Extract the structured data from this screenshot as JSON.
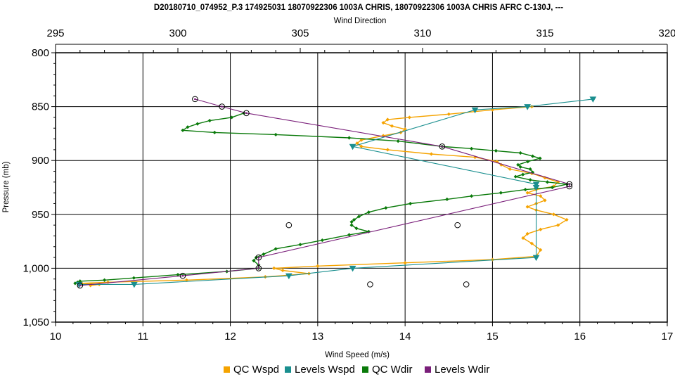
{
  "chart_data": {
    "type": "line",
    "title": "D20180710_074952_P.3 174925031 18070922306 1003A CHRIS, 18070922306 1003A CHRIS AFRC C-130J, ---",
    "xlabel": "Wind Speed (m/s)",
    "x2label": "Wind Direction",
    "ylabel": "Pressure (mb)",
    "xlim": [
      10,
      17
    ],
    "x2lim": [
      295,
      320
    ],
    "ylim": [
      800,
      1050
    ],
    "y_inverted": true,
    "xticks": [
      "10",
      "11",
      "12",
      "13",
      "14",
      "15",
      "16",
      "17"
    ],
    "x2ticks": [
      "295",
      "300",
      "305",
      "310",
      "315",
      "320"
    ],
    "yticks": [
      "800",
      "850",
      "900",
      "950",
      "1,000",
      "1,050"
    ],
    "grid": true,
    "legend_position": "bottom",
    "legend": [
      "QC Wspd",
      "Levels Wspd",
      "QC Wdir",
      "Levels Wdir"
    ],
    "series": [
      {
        "name": "QC Wspd",
        "axis": "x",
        "color": "#f5a300",
        "marker": "diamond",
        "points": [
          [
            15.45,
            850
          ],
          [
            15.0,
            853
          ],
          [
            14.5,
            857
          ],
          [
            14.05,
            860
          ],
          [
            13.8,
            862
          ],
          [
            13.75,
            865
          ],
          [
            13.85,
            868
          ],
          [
            14.0,
            871
          ],
          [
            13.95,
            874
          ],
          [
            13.75,
            877
          ],
          [
            13.5,
            881
          ],
          [
            13.45,
            884
          ],
          [
            13.5,
            887
          ],
          [
            13.8,
            890
          ],
          [
            14.3,
            894
          ],
          [
            14.8,
            897
          ],
          [
            15.05,
            901
          ],
          [
            15.1,
            904
          ],
          [
            15.2,
            908
          ],
          [
            15.45,
            912
          ],
          [
            15.6,
            916
          ],
          [
            15.75,
            920
          ],
          [
            15.7,
            924
          ],
          [
            15.5,
            927
          ],
          [
            15.4,
            930
          ],
          [
            15.55,
            933
          ],
          [
            15.6,
            937
          ],
          [
            15.5,
            940
          ],
          [
            15.4,
            943
          ],
          [
            15.5,
            946
          ],
          [
            15.7,
            950
          ],
          [
            15.85,
            955
          ],
          [
            15.75,
            960
          ],
          [
            15.55,
            964
          ],
          [
            15.4,
            968
          ],
          [
            15.35,
            972
          ],
          [
            15.45,
            977
          ],
          [
            15.55,
            983
          ],
          [
            15.5,
            989
          ],
          [
            15.0,
            992
          ],
          [
            14.0,
            995
          ],
          [
            13.0,
            998
          ],
          [
            12.5,
            1000
          ],
          [
            12.6,
            1002
          ],
          [
            12.9,
            1005
          ],
          [
            12.4,
            1008
          ],
          [
            11.5,
            1011
          ],
          [
            10.6,
            1013
          ],
          [
            10.3,
            1014
          ],
          [
            10.5,
            1015
          ],
          [
            10.4,
            1016
          ]
        ]
      },
      {
        "name": "Levels Wspd",
        "axis": "x",
        "color": "#1a8f8f",
        "marker": "triangle",
        "points": [
          [
            16.15,
            843
          ],
          [
            15.4,
            850
          ],
          [
            14.8,
            853
          ],
          [
            13.4,
            887
          ],
          [
            15.5,
            922
          ],
          [
            15.5,
            925
          ],
          [
            15.5,
            990
          ],
          [
            13.4,
            1000
          ],
          [
            12.67,
            1007
          ],
          [
            10.9,
            1015
          ],
          [
            10.27,
            1015
          ]
        ]
      },
      {
        "name": "QC Wdir",
        "axis": "x2",
        "color": "#0a7a0a",
        "marker": "diamond",
        "points": [
          [
            302.7,
            856
          ],
          [
            302.2,
            860
          ],
          [
            301.3,
            863
          ],
          [
            300.8,
            866
          ],
          [
            300.4,
            869
          ],
          [
            300.2,
            872
          ],
          [
            301.5,
            874
          ],
          [
            304.0,
            876
          ],
          [
            307.0,
            879
          ],
          [
            309.0,
            882
          ],
          [
            310.8,
            887
          ],
          [
            312.0,
            889
          ],
          [
            313.0,
            891
          ],
          [
            314.0,
            893
          ],
          [
            314.5,
            896
          ],
          [
            314.8,
            898
          ],
          [
            314.3,
            901
          ],
          [
            313.9,
            904
          ],
          [
            314.0,
            906
          ],
          [
            314.4,
            908
          ],
          [
            314.5,
            911
          ],
          [
            314.1,
            913
          ],
          [
            313.8,
            915
          ],
          [
            314.4,
            918
          ],
          [
            315.1,
            920
          ],
          [
            315.9,
            922
          ],
          [
            315.3,
            925
          ],
          [
            314.2,
            927
          ],
          [
            313.2,
            930
          ],
          [
            312.0,
            933
          ],
          [
            311.0,
            936
          ],
          [
            309.5,
            940
          ],
          [
            308.5,
            944
          ],
          [
            307.8,
            948
          ],
          [
            307.4,
            952
          ],
          [
            307.2,
            955
          ],
          [
            307.1,
            957
          ],
          [
            307.1,
            960
          ],
          [
            307.3,
            963
          ],
          [
            307.8,
            966
          ],
          [
            307.0,
            969
          ],
          [
            305.9,
            974
          ],
          [
            305.0,
            978
          ],
          [
            304.0,
            982
          ],
          [
            303.5,
            987
          ],
          [
            303.2,
            990
          ],
          [
            303.1,
            993
          ],
          [
            303.3,
            997
          ],
          [
            303.3,
            1000
          ],
          [
            302.0,
            1003
          ],
          [
            300.0,
            1006
          ],
          [
            298.2,
            1009
          ],
          [
            297.0,
            1011
          ],
          [
            296.0,
            1012
          ],
          [
            295.9,
            1013
          ],
          [
            295.8,
            1014
          ]
        ]
      },
      {
        "name": "Levels Wdir",
        "axis": "x2",
        "color": "#7a1f7a",
        "marker": "circle",
        "points": [
          [
            300.7,
            843
          ],
          [
            301.8,
            850
          ],
          [
            302.8,
            856
          ],
          [
            310.8,
            887
          ],
          [
            316.0,
            922
          ],
          [
            316.0,
            924
          ],
          [
            303.3,
            990
          ],
          [
            303.3,
            1000
          ],
          [
            300.2,
            1007
          ],
          [
            296.0,
            1016
          ]
        ]
      }
    ],
    "unconnected_points": [
      [
        12.67,
        960
      ],
      [
        14.6,
        960
      ],
      [
        13.6,
        1015
      ],
      [
        14.7,
        1015
      ]
    ]
  }
}
